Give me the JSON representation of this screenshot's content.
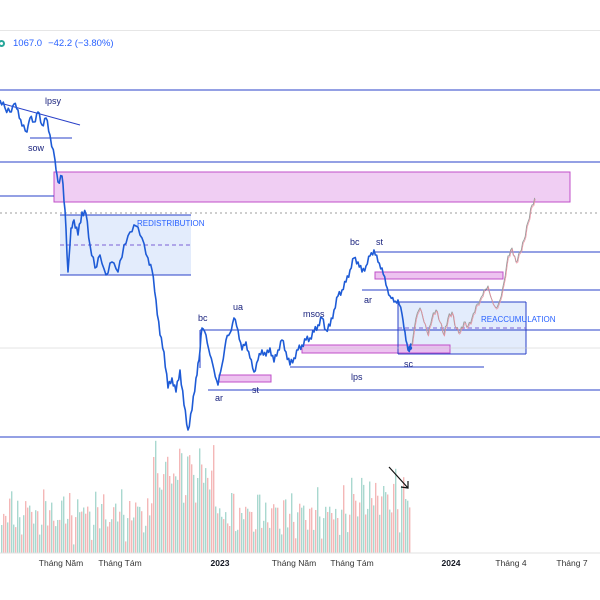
{
  "header": {
    "last_price": "1067.0",
    "change": "−42.2 (−3.80%)",
    "accent_color": "#2962ff",
    "live_color": "#26a69a"
  },
  "chart_data": {
    "type": "line",
    "legend": "none",
    "grid": false,
    "x_ticks": [
      {
        "label": "Tháng Năm",
        "bold": false
      },
      {
        "label": "Tháng Tám",
        "bold": false
      },
      {
        "label": "2023",
        "bold": true
      },
      {
        "label": "Tháng Năm",
        "bold": false
      },
      {
        "label": "Tháng Tám",
        "bold": false
      },
      {
        "label": "2024",
        "bold": true
      },
      {
        "label": "Tháng 4",
        "bold": false
      },
      {
        "label": "Tháng 7",
        "bold": false
      }
    ],
    "annotations": [
      "lpsy",
      "sow",
      "REDISTRIBUTION",
      "bc",
      "ua",
      "ar",
      "st",
      "msos",
      "lps",
      "bc",
      "st",
      "ar",
      "sc",
      "REACCUMULATION"
    ],
    "colors": {
      "price": "#1e5bd6",
      "projection": "#9e9e9e",
      "level": "#2940c8",
      "zone_fill": "#e8b4ec",
      "zone_border": "#c04fc8",
      "range_fill": "#dce7fb",
      "vol_up": "#a9d8cf",
      "vol_down": "#f4b7b7"
    }
  }
}
